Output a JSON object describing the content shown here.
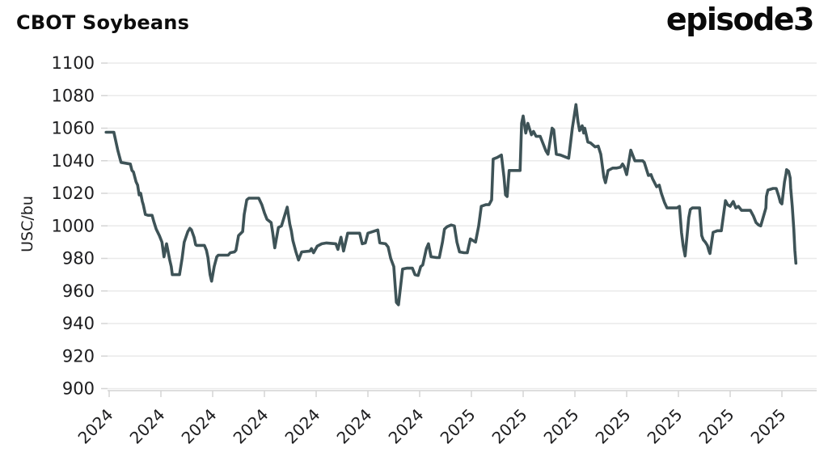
{
  "header": {
    "title": "CBOT Soybeans",
    "logo_text": "episode3"
  },
  "chart_data": {
    "type": "line",
    "title": "CBOT Soybeans",
    "ylabel": "USC/bu",
    "ylim": [
      900,
      1100
    ],
    "yticks": [
      1100,
      1080,
      1060,
      1040,
      1020,
      1000,
      980,
      960,
      940,
      920,
      900
    ],
    "x_tick_labels": [
      "2024",
      "2024",
      "2024",
      "2024",
      "2024",
      "2024",
      "2024",
      "2025",
      "2025",
      "2025",
      "2025",
      "2025",
      "2025",
      "2025"
    ],
    "legend": "none",
    "grid": "horizontal",
    "colors": {
      "line": "#3e5357",
      "grid": "#eaeaea",
      "axis": "#d4d4d4",
      "text": "#1d1d1f"
    },
    "points": [
      [
        -0.06,
        1057.5
      ],
      [
        0.09,
        1057.5
      ],
      [
        0.17,
        1046
      ],
      [
        0.23,
        1039
      ],
      [
        0.41,
        1038
      ],
      [
        0.44,
        1034
      ],
      [
        0.47,
        1033
      ],
      [
        0.52,
        1027
      ],
      [
        0.55,
        1025
      ],
      [
        0.58,
        1019
      ],
      [
        0.61,
        1020
      ],
      [
        0.64,
        1015
      ],
      [
        0.66,
        1013
      ],
      [
        0.7,
        1007
      ],
      [
        0.75,
        1006.5
      ],
      [
        0.83,
        1006.5
      ],
      [
        0.86,
        1003
      ],
      [
        0.91,
        998
      ],
      [
        0.97,
        994
      ],
      [
        1.02,
        990
      ],
      [
        1.06,
        981
      ],
      [
        1.11,
        989
      ],
      [
        1.17,
        979
      ],
      [
        1.2,
        975
      ],
      [
        1.22,
        970
      ],
      [
        1.36,
        970
      ],
      [
        1.41,
        980
      ],
      [
        1.45,
        990
      ],
      [
        1.52,
        996.5
      ],
      [
        1.56,
        998.5
      ],
      [
        1.59,
        997.5
      ],
      [
        1.64,
        993
      ],
      [
        1.67,
        988.5
      ],
      [
        1.69,
        988
      ],
      [
        1.84,
        988
      ],
      [
        1.88,
        985
      ],
      [
        1.91,
        980.5
      ],
      [
        1.95,
        970
      ],
      [
        1.98,
        966
      ],
      [
        2.03,
        975
      ],
      [
        2.08,
        981
      ],
      [
        2.11,
        982
      ],
      [
        2.3,
        982
      ],
      [
        2.34,
        983.5
      ],
      [
        2.42,
        984
      ],
      [
        2.45,
        985
      ],
      [
        2.5,
        994
      ],
      [
        2.58,
        996.5
      ],
      [
        2.61,
        1007
      ],
      [
        2.66,
        1016
      ],
      [
        2.7,
        1017
      ],
      [
        2.89,
        1017
      ],
      [
        2.95,
        1013
      ],
      [
        3.0,
        1008
      ],
      [
        3.05,
        1004
      ],
      [
        3.13,
        1002
      ],
      [
        3.16,
        996
      ],
      [
        3.2,
        986.5
      ],
      [
        3.27,
        999
      ],
      [
        3.33,
        1000
      ],
      [
        3.44,
        1011.5
      ],
      [
        3.49,
        1001
      ],
      [
        3.52,
        997
      ],
      [
        3.55,
        991
      ],
      [
        3.61,
        984
      ],
      [
        3.66,
        979
      ],
      [
        3.72,
        984
      ],
      [
        3.88,
        984.5
      ],
      [
        3.91,
        986
      ],
      [
        3.95,
        983.5
      ],
      [
        4.02,
        987.5
      ],
      [
        4.11,
        989
      ],
      [
        4.2,
        989.5
      ],
      [
        4.38,
        989
      ],
      [
        4.42,
        985.5
      ],
      [
        4.48,
        993
      ],
      [
        4.53,
        984.5
      ],
      [
        4.61,
        995.5
      ],
      [
        4.84,
        995.5
      ],
      [
        4.89,
        989
      ],
      [
        4.95,
        989.5
      ],
      [
        5.0,
        995.5
      ],
      [
        5.05,
        996
      ],
      [
        5.19,
        997.5
      ],
      [
        5.23,
        989.5
      ],
      [
        5.34,
        989
      ],
      [
        5.39,
        987
      ],
      [
        5.44,
        980
      ],
      [
        5.5,
        975
      ],
      [
        5.55,
        953
      ],
      [
        5.59,
        951.5
      ],
      [
        5.67,
        973.5
      ],
      [
        5.75,
        974
      ],
      [
        5.86,
        974
      ],
      [
        5.91,
        970
      ],
      [
        5.97,
        969.5
      ],
      [
        6.02,
        975
      ],
      [
        6.06,
        976
      ],
      [
        6.13,
        986
      ],
      [
        6.17,
        989
      ],
      [
        6.22,
        981
      ],
      [
        6.33,
        980.5
      ],
      [
        6.38,
        980.5
      ],
      [
        6.44,
        990
      ],
      [
        6.48,
        998
      ],
      [
        6.53,
        999.5
      ],
      [
        6.61,
        1000.5
      ],
      [
        6.67,
        1000
      ],
      [
        6.72,
        990
      ],
      [
        6.77,
        984
      ],
      [
        6.86,
        983.5
      ],
      [
        6.92,
        983.5
      ],
      [
        6.98,
        992
      ],
      [
        7.03,
        991
      ],
      [
        7.08,
        990
      ],
      [
        7.14,
        1000
      ],
      [
        7.19,
        1012
      ],
      [
        7.28,
        1013
      ],
      [
        7.34,
        1013
      ],
      [
        7.39,
        1016
      ],
      [
        7.42,
        1041
      ],
      [
        7.5,
        1042
      ],
      [
        7.58,
        1043.5
      ],
      [
        7.63,
        1030
      ],
      [
        7.66,
        1019
      ],
      [
        7.69,
        1018
      ],
      [
        7.73,
        1034
      ],
      [
        7.84,
        1034
      ],
      [
        7.94,
        1034
      ],
      [
        7.97,
        1063
      ],
      [
        8.0,
        1067.5
      ],
      [
        8.05,
        1057
      ],
      [
        8.09,
        1063
      ],
      [
        8.16,
        1056
      ],
      [
        8.2,
        1058
      ],
      [
        8.25,
        1055
      ],
      [
        8.33,
        1055
      ],
      [
        8.44,
        1046
      ],
      [
        8.48,
        1044
      ],
      [
        8.56,
        1060
      ],
      [
        8.59,
        1059
      ],
      [
        8.64,
        1044
      ],
      [
        8.72,
        1043.5
      ],
      [
        8.88,
        1041.5
      ],
      [
        8.95,
        1060
      ],
      [
        9.02,
        1074.5
      ],
      [
        9.06,
        1064
      ],
      [
        9.09,
        1058.5
      ],
      [
        9.14,
        1061.5
      ],
      [
        9.17,
        1057
      ],
      [
        9.19,
        1060
      ],
      [
        9.25,
        1051.5
      ],
      [
        9.3,
        1051
      ],
      [
        9.39,
        1048.5
      ],
      [
        9.45,
        1049
      ],
      [
        9.5,
        1044
      ],
      [
        9.56,
        1030
      ],
      [
        9.59,
        1026.5
      ],
      [
        9.64,
        1034
      ],
      [
        9.73,
        1035.5
      ],
      [
        9.81,
        1035.5
      ],
      [
        9.88,
        1036
      ],
      [
        9.92,
        1038
      ],
      [
        9.95,
        1036.5
      ],
      [
        10.0,
        1031.5
      ],
      [
        10.08,
        1046.5
      ],
      [
        10.16,
        1040
      ],
      [
        10.31,
        1040
      ],
      [
        10.34,
        1039
      ],
      [
        10.42,
        1031
      ],
      [
        10.47,
        1031.5
      ],
      [
        10.5,
        1029
      ],
      [
        10.58,
        1024
      ],
      [
        10.63,
        1025
      ],
      [
        10.67,
        1020
      ],
      [
        10.73,
        1014.5
      ],
      [
        10.78,
        1011
      ],
      [
        10.89,
        1011
      ],
      [
        10.97,
        1011
      ],
      [
        11.02,
        1012
      ],
      [
        11.06,
        996
      ],
      [
        11.09,
        988
      ],
      [
        11.13,
        981.5
      ],
      [
        11.17,
        995
      ],
      [
        11.2,
        1005
      ],
      [
        11.23,
        1010
      ],
      [
        11.27,
        1011
      ],
      [
        11.41,
        1011
      ],
      [
        11.45,
        994
      ],
      [
        11.48,
        991.5
      ],
      [
        11.52,
        990
      ],
      [
        11.56,
        988
      ],
      [
        11.59,
        984.5
      ],
      [
        11.61,
        983
      ],
      [
        11.67,
        996
      ],
      [
        11.75,
        997
      ],
      [
        11.83,
        997
      ],
      [
        11.91,
        1015.5
      ],
      [
        11.95,
        1013
      ],
      [
        12.0,
        1012
      ],
      [
        12.06,
        1015
      ],
      [
        12.11,
        1011
      ],
      [
        12.16,
        1012
      ],
      [
        12.22,
        1009.5
      ],
      [
        12.39,
        1009.5
      ],
      [
        12.45,
        1006
      ],
      [
        12.5,
        1002
      ],
      [
        12.55,
        1000.5
      ],
      [
        12.59,
        1000
      ],
      [
        12.69,
        1011
      ],
      [
        12.7,
        1018
      ],
      [
        12.73,
        1022
      ],
      [
        12.83,
        1023
      ],
      [
        12.89,
        1023
      ],
      [
        12.94,
        1018
      ],
      [
        12.97,
        1014.5
      ],
      [
        13.0,
        1013.5
      ],
      [
        13.05,
        1027
      ],
      [
        13.08,
        1032
      ],
      [
        13.09,
        1034.5
      ],
      [
        13.13,
        1033.5
      ],
      [
        13.16,
        1029.5
      ],
      [
        13.17,
        1023
      ],
      [
        13.2,
        1012
      ],
      [
        13.23,
        998
      ],
      [
        13.25,
        985
      ],
      [
        13.27,
        977
      ]
    ]
  }
}
